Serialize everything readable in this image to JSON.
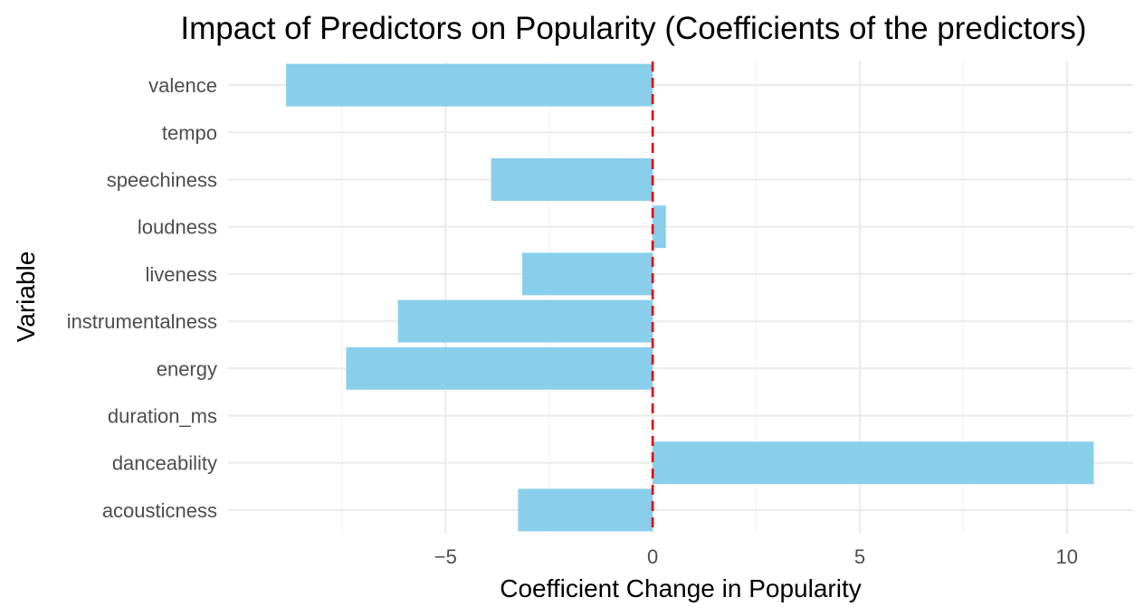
{
  "chart_data": {
    "type": "bar",
    "orientation": "horizontal",
    "title": "Impact of Predictors on Popularity (Coefficients of the predictors)",
    "xlabel": "Coefficient Change in Popularity",
    "ylabel": "Variable",
    "categories": [
      "acousticness",
      "danceability",
      "duration_ms",
      "energy",
      "instrumentalness",
      "liveness",
      "loudness",
      "speechiness",
      "tempo",
      "valence"
    ],
    "values": [
      -3.25,
      10.65,
      0.0,
      -7.4,
      -6.15,
      -3.15,
      0.32,
      -3.9,
      0.0,
      -8.85
    ],
    "xlim": [
      -10.25,
      11.6
    ],
    "x_major_ticks": [
      -5,
      0,
      5,
      10
    ],
    "x_tick_labels": [
      "−5",
      "0",
      "5",
      "10"
    ],
    "x_minor_ticks": [
      -7.5,
      -2.5,
      2.5,
      7.5
    ],
    "bar_color": "#89cfeb",
    "reference_line": {
      "x": 0,
      "color": "#e00000",
      "style": "dashed"
    },
    "grid": true
  }
}
